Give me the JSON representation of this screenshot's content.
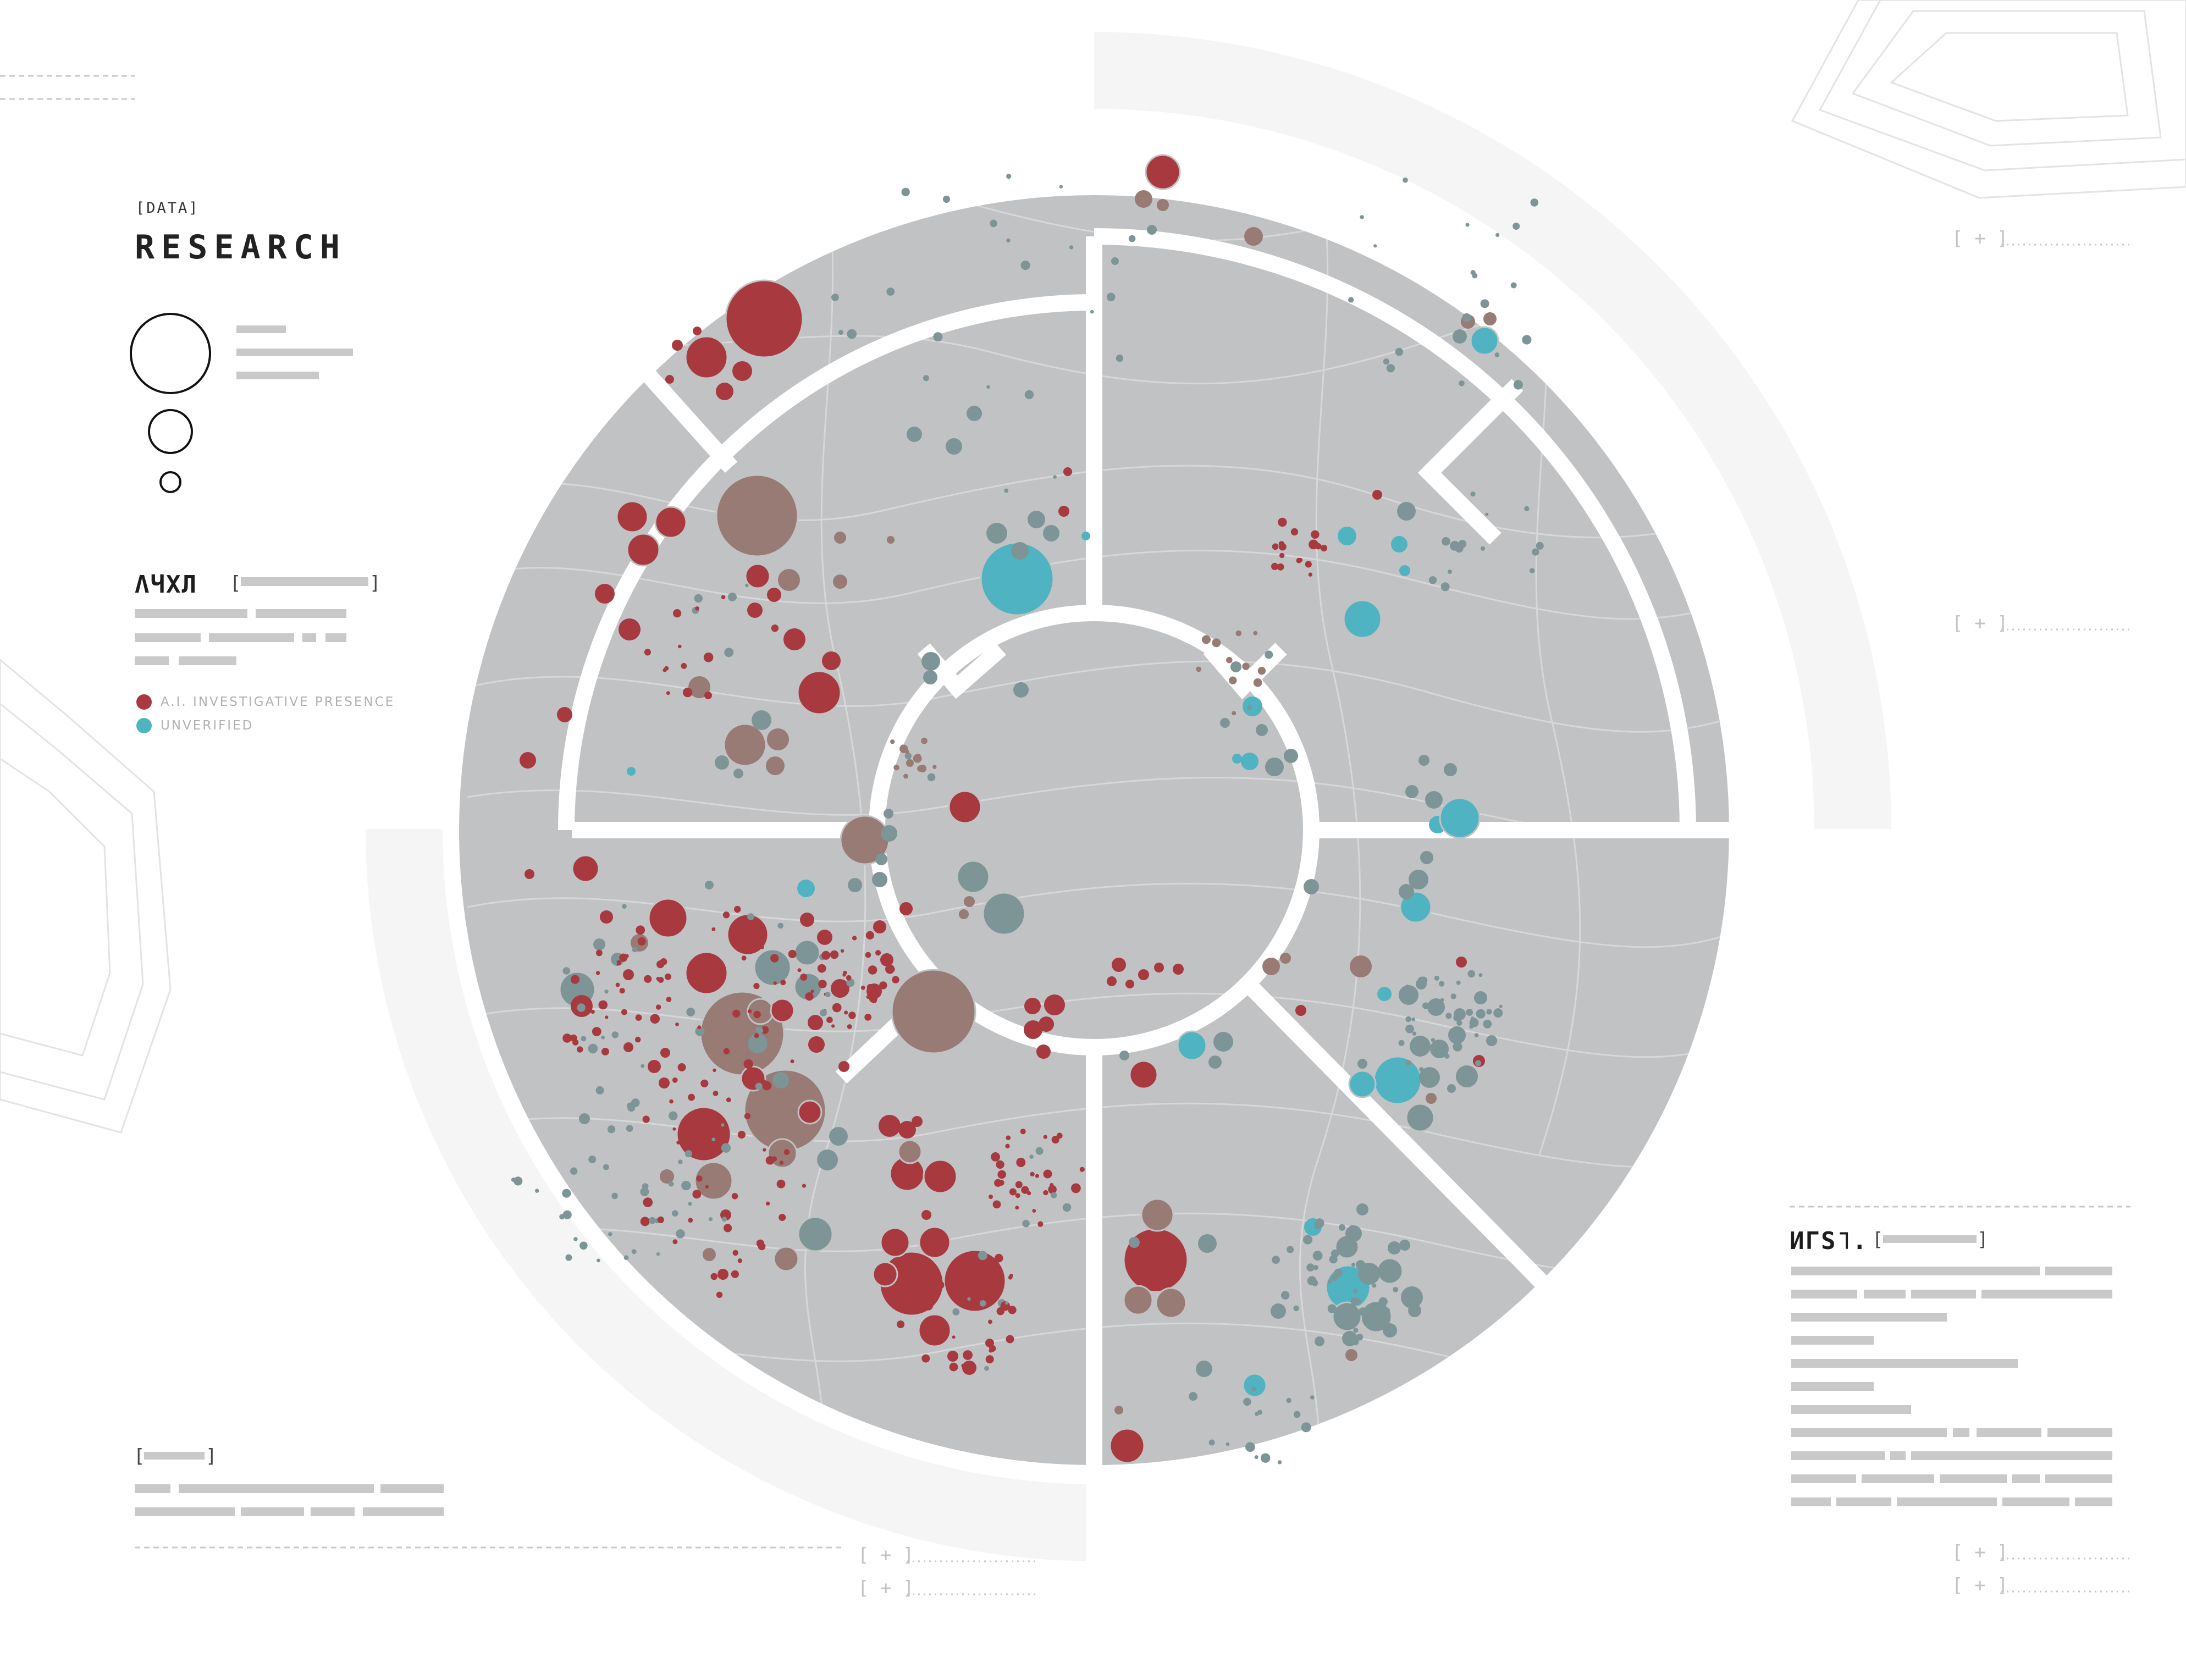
{
  "header": {
    "tag": "[DATA]",
    "title": "RESEARCH"
  },
  "size_legend": {
    "sizes": [
      "large",
      "medium",
      "small"
    ]
  },
  "legend": {
    "code": "ΛЧXЛ",
    "items": [
      {
        "label": "A.I. INVESTIGATIVE PRESENCE",
        "color": "#a7393f"
      },
      {
        "label": "UNVERIFIED",
        "color": "#4fb3c2"
      }
    ]
  },
  "right_panel": {
    "code": "ИΓS˥."
  },
  "markers": {
    "plus": "[ + ]"
  },
  "colors": {
    "ring": "#c1c2c4",
    "red": "#a7393f",
    "brown": "#977b74",
    "gray_teal": "#7d9597",
    "cyan": "#4fb3c2",
    "outer_arc": "#f5f5f5"
  }
}
